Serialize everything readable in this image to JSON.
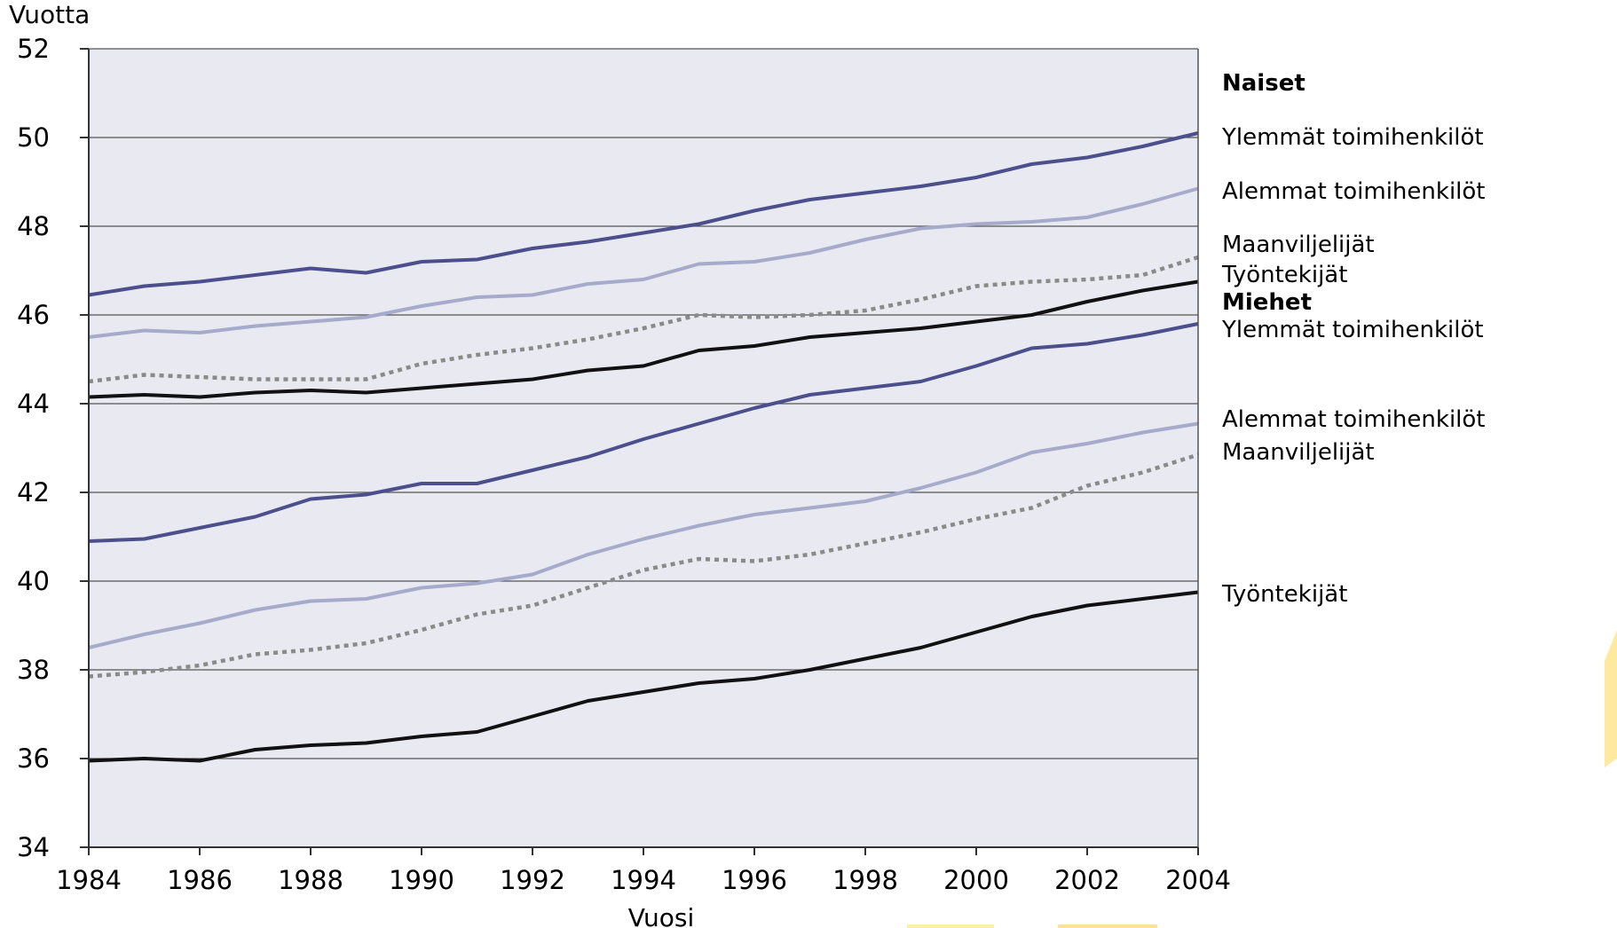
{
  "chart_data": {
    "type": "line",
    "xlabel": "Vuosi",
    "ylabel": "Vuotta",
    "xlim": [
      1984,
      2004
    ],
    "ylim": [
      34,
      52
    ],
    "x_ticks": [
      "1984",
      "1986",
      "1988",
      "1990",
      "1992",
      "1994",
      "1996",
      "1998",
      "2000",
      "2002",
      "2004"
    ],
    "y_ticks": [
      "34",
      "36",
      "38",
      "40",
      "42",
      "44",
      "46",
      "48",
      "50",
      "52"
    ],
    "grid": "horizontal",
    "plot_background": "#e9e9f1",
    "x": [
      1984,
      1985,
      1986,
      1987,
      1988,
      1989,
      1990,
      1991,
      1992,
      1993,
      1994,
      1995,
      1996,
      1997,
      1998,
      1999,
      2000,
      2001,
      2002,
      2003,
      2004
    ],
    "legend_groups": [
      "Naiset",
      "Miehet"
    ],
    "series": [
      {
        "name": "Ylemmät toimihenkilöt",
        "group": "Naiset",
        "color": "#4b4f8c",
        "dash": "solid",
        "values": [
          46.45,
          46.65,
          46.75,
          46.9,
          47.05,
          46.95,
          47.2,
          47.25,
          47.5,
          47.65,
          47.85,
          48.05,
          48.35,
          48.6,
          48.75,
          48.9,
          49.1,
          49.4,
          49.55,
          49.8,
          50.1
        ]
      },
      {
        "name": "Alemmat toimihenkilöt",
        "group": "Naiset",
        "color": "#a6aacb",
        "dash": "solid",
        "values": [
          45.5,
          45.65,
          45.6,
          45.75,
          45.85,
          45.95,
          46.2,
          46.4,
          46.45,
          46.7,
          46.8,
          47.15,
          47.2,
          47.4,
          47.7,
          47.95,
          48.05,
          48.1,
          48.2,
          48.5,
          48.85
        ]
      },
      {
        "name": "Maanviljelijät",
        "group": "Naiset",
        "color": "#8a8a8a",
        "dash": "dotted",
        "values": [
          44.5,
          44.65,
          44.6,
          44.55,
          44.55,
          44.55,
          44.9,
          45.1,
          45.25,
          45.45,
          45.7,
          46.0,
          45.95,
          46.0,
          46.1,
          46.35,
          46.65,
          46.75,
          46.8,
          46.9,
          47.3
        ]
      },
      {
        "name": "Työntekijät",
        "group": "Naiset",
        "color": "#111111",
        "dash": "solid",
        "values": [
          44.15,
          44.2,
          44.15,
          44.25,
          44.3,
          44.25,
          44.35,
          44.45,
          44.55,
          44.75,
          44.85,
          45.2,
          45.3,
          45.5,
          45.6,
          45.7,
          45.85,
          46.0,
          46.3,
          46.55,
          46.75
        ]
      },
      {
        "name": "Ylemmät toimihenkilöt",
        "group": "Miehet",
        "color": "#4b4f8c",
        "dash": "solid",
        "values": [
          40.9,
          40.95,
          41.2,
          41.45,
          41.85,
          41.95,
          42.2,
          42.2,
          42.5,
          42.8,
          43.2,
          43.55,
          43.9,
          44.2,
          44.35,
          44.5,
          44.85,
          45.25,
          45.35,
          45.55,
          45.8
        ]
      },
      {
        "name": "Alemmat toimihenkilöt",
        "group": "Miehet",
        "color": "#a6aacb",
        "dash": "solid",
        "values": [
          38.5,
          38.8,
          39.05,
          39.35,
          39.55,
          39.6,
          39.85,
          39.95,
          40.15,
          40.6,
          40.95,
          41.25,
          41.5,
          41.65,
          41.8,
          42.1,
          42.45,
          42.9,
          43.1,
          43.35,
          43.55
        ]
      },
      {
        "name": "Maanviljelijät",
        "group": "Miehet",
        "color": "#8a8a8a",
        "dash": "dotted",
        "values": [
          37.85,
          37.95,
          38.1,
          38.35,
          38.45,
          38.6,
          38.9,
          39.25,
          39.45,
          39.85,
          40.25,
          40.5,
          40.45,
          40.6,
          40.85,
          41.1,
          41.4,
          41.65,
          42.15,
          42.45,
          42.85
        ]
      },
      {
        "name": "Työntekijät",
        "group": "Miehet",
        "color": "#111111",
        "dash": "solid",
        "values": [
          35.95,
          36.0,
          35.95,
          36.2,
          36.3,
          36.35,
          36.5,
          36.6,
          36.95,
          37.3,
          37.5,
          37.7,
          37.8,
          38.0,
          38.25,
          38.5,
          38.85,
          39.2,
          39.45,
          39.6,
          39.75
        ]
      }
    ]
  }
}
